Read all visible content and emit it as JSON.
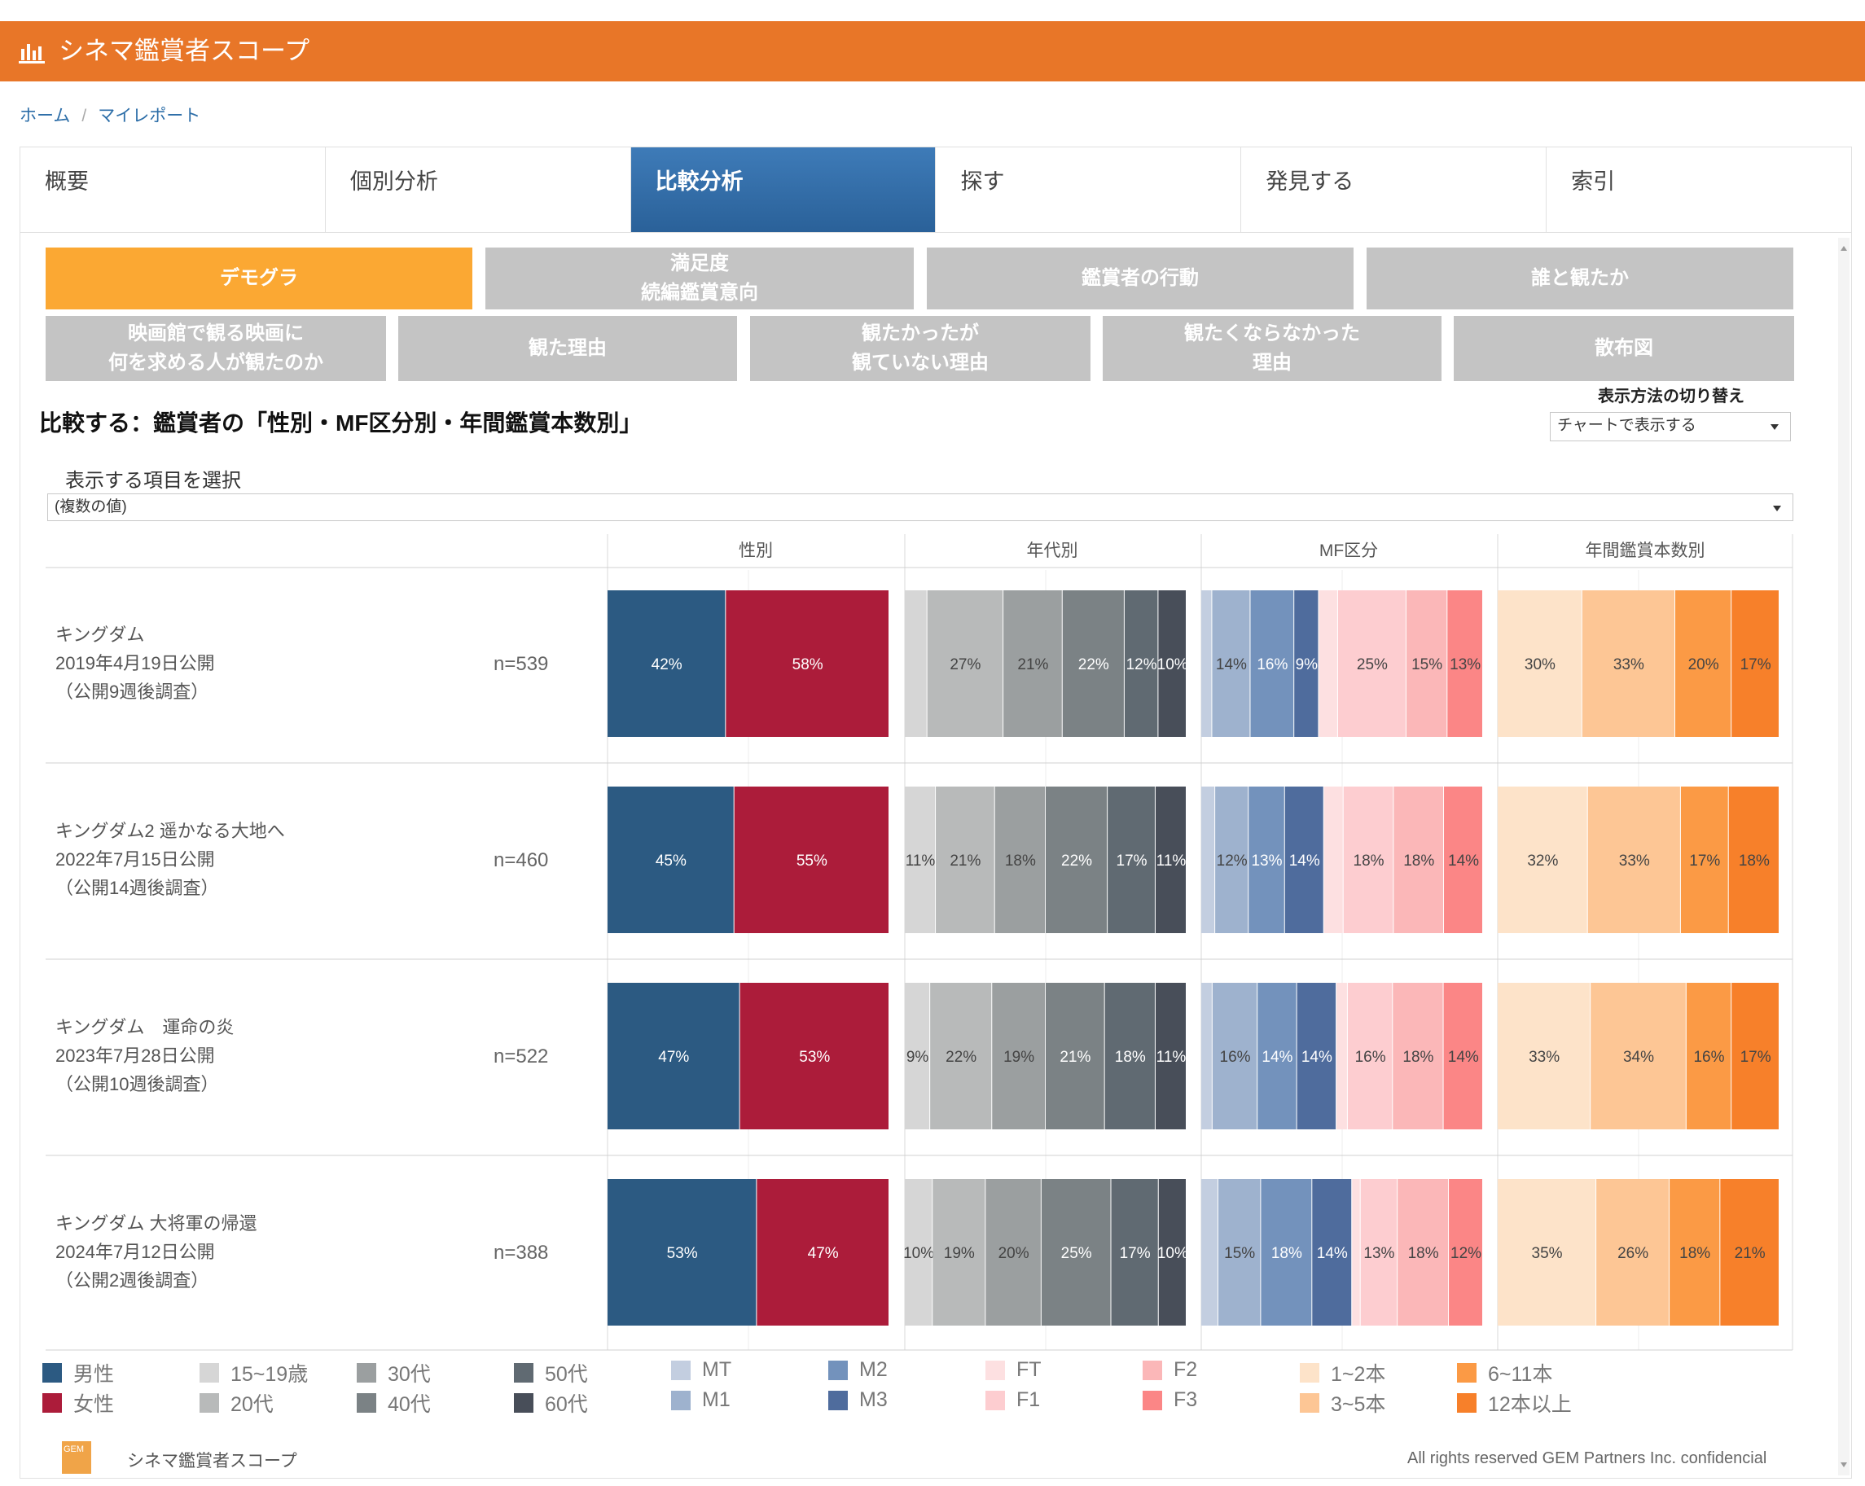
{
  "app": {
    "title": "シネマ鑑賞者スコープ"
  },
  "breadcrumb": [
    "ホーム",
    "マイレポート"
  ],
  "nav_tabs": [
    "概要",
    "個別分析",
    "比較分析",
    "探す",
    "発見する",
    "索引"
  ],
  "sub_tabs": {
    "row1": [
      "デモグラ",
      "満足度\n続編鑑賞意向",
      "鑑賞者の行動",
      "誰と観たか"
    ],
    "row2": [
      "映画館で観る映画に\n何を求める人が観たのか",
      "観た理由",
      "観たかったが\n観ていない理由",
      "観たくならなかった\n理由",
      "散布図"
    ]
  },
  "section_title": "比較する：鑑賞者の「性別・MF区分別・年間鑑賞本数別」",
  "display_switch": {
    "label": "表示方法の切り替え",
    "value": "チャートで表示する"
  },
  "item_select": {
    "label": "表示する項目を選択",
    "value": "(複数の値)"
  },
  "colors": {
    "accent": "#e87628",
    "active_subtab": "#fba833",
    "male": "#2c5a82",
    "female": "#ac1c3a",
    "age_15_19": "#d6d6d6",
    "age_20s": "#b8baba",
    "age_30s": "#9b9fa0",
    "age_40s": "#7b8285",
    "age_50s": "#606a72",
    "age_60s": "#484e59",
    "MT": "#c3cee0",
    "M1": "#9eb2ce",
    "M2": "#7392bc",
    "M3": "#4f6c9d",
    "FT": "#fde0e1",
    "F1": "#fdcdd0",
    "F2": "#fbb7b8",
    "F3": "#fb8686",
    "n1_2": "#fde3c9",
    "n3_5": "#fdc695",
    "n6_11": "#fb9a45",
    "n12plus": "#f7802a"
  },
  "chart_data": {
    "type": "bar",
    "subtype": "stacked-100-horizontal",
    "columns": [
      "性別",
      "年代別",
      "MF区分",
      "年間鑑賞本数別"
    ],
    "rows": [
      {
        "title": "キングダム",
        "date": "2019年4月19日公開",
        "note": "（公開9週後調査）",
        "n": "n=539",
        "性別": [
          42,
          58
        ],
        "年代別": [
          8,
          27,
          21,
          22,
          12,
          10
        ],
        "MF区分": [
          4,
          14,
          16,
          9,
          7,
          25,
          15,
          13
        ],
        "年間鑑賞本数別": [
          30,
          33,
          20,
          17
        ]
      },
      {
        "title": "キングダム2 遥かなる大地へ",
        "date": "2022年7月15日公開",
        "note": "（公開14週後調査）",
        "n": "n=460",
        "性別": [
          45,
          55
        ],
        "年代別": [
          11,
          21,
          18,
          22,
          17,
          11
        ],
        "MF区分": [
          5,
          12,
          13,
          14,
          7,
          18,
          18,
          14
        ],
        "年間鑑賞本数別": [
          32,
          33,
          17,
          18
        ]
      },
      {
        "title": "キングダム　運命の炎",
        "date": "2023年7月28日公開",
        "note": "（公開10週後調査）",
        "n": "n=522",
        "性別": [
          47,
          53
        ],
        "年代別": [
          9,
          22,
          19,
          21,
          18,
          11
        ],
        "MF区分": [
          4,
          16,
          14,
          14,
          4,
          16,
          18,
          14
        ],
        "年間鑑賞本数別": [
          33,
          34,
          16,
          17
        ]
      },
      {
        "title": "キングダム 大将軍の帰還",
        "date": "2024年7月12日公開",
        "note": "（公開2週後調査）",
        "n": "n=388",
        "性別": [
          53,
          47
        ],
        "年代別": [
          10,
          19,
          20,
          25,
          17,
          10
        ],
        "MF区分": [
          6,
          15,
          18,
          14,
          3,
          13,
          18,
          12
        ],
        "年間鑑賞本数別": [
          35,
          26,
          18,
          21
        ]
      }
    ],
    "show_label_from": 9
  },
  "legend": [
    {
      "label": "男性",
      "color": "#2c5a82"
    },
    {
      "label": "女性",
      "color": "#ac1c3a"
    },
    {
      "label": "15~19歳",
      "color": "#d6d6d6"
    },
    {
      "label": "20代",
      "color": "#b8baba"
    },
    {
      "label": "30代",
      "color": "#9b9fa0"
    },
    {
      "label": "40代",
      "color": "#7b8285"
    },
    {
      "label": "50代",
      "color": "#606a72"
    },
    {
      "label": "60代",
      "color": "#484e59"
    },
    {
      "label": "MT",
      "color": "#c3cee0"
    },
    {
      "label": "M1",
      "color": "#9eb2ce"
    },
    {
      "label": "M2",
      "color": "#7392bc"
    },
    {
      "label": "M3",
      "color": "#4f6c9d"
    },
    {
      "label": "FT",
      "color": "#fde0e1"
    },
    {
      "label": "F1",
      "color": "#fdcdd0"
    },
    {
      "label": "F2",
      "color": "#fbb7b8"
    },
    {
      "label": "F3",
      "color": "#fb8686"
    },
    {
      "label": "1~2本",
      "color": "#fde3c9"
    },
    {
      "label": "3~5本",
      "color": "#fdc695"
    },
    {
      "label": "6~11本",
      "color": "#fb9a45"
    },
    {
      "label": "12本以上",
      "color": "#f7802a"
    }
  ],
  "footer": {
    "name": "シネマ鑑賞者スコープ",
    "copyright": "All rights reserved GEM Partners Inc. confidencial",
    "logo_text": "GEM"
  }
}
